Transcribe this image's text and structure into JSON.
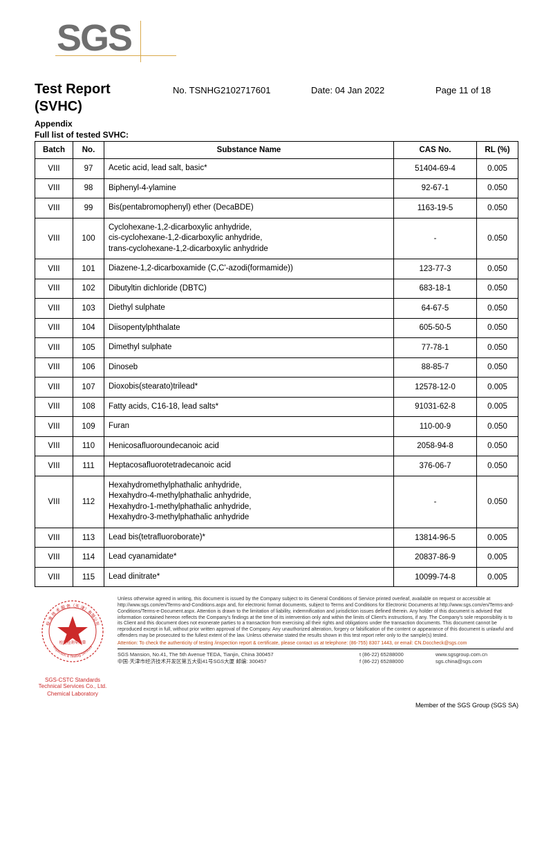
{
  "logo": {
    "text": "SGS"
  },
  "header": {
    "title": "Test Report",
    "subtitle": "(SVHC)",
    "report_no_label": "No.",
    "report_no": "TSNHG2102717601",
    "date_label": "Date:",
    "date": "04 Jan 2022",
    "page_label": "Page",
    "page": "11 of 18",
    "appendix": "Appendix",
    "list_header": "Full list of tested SVHC:"
  },
  "table": {
    "columns": [
      "Batch",
      "No.",
      "Substance Name",
      "CAS No.",
      "RL (%)"
    ],
    "col_align": [
      "center",
      "center",
      "left",
      "center",
      "center"
    ],
    "rows": [
      [
        "VIII",
        "97",
        "Acetic acid, lead salt, basic*",
        "51404-69-4",
        "0.005"
      ],
      [
        "VIII",
        "98",
        "Biphenyl-4-ylamine",
        "92-67-1",
        "0.050"
      ],
      [
        "VIII",
        "99",
        "Bis(pentabromophenyl) ether (DecaBDE)",
        "1163-19-5",
        "0.050"
      ],
      [
        "VIII",
        "100",
        "Cyclohexane-1,2-dicarboxylic anhydride,\ncis-cyclohexane-1,2-dicarboxylic anhydride,\ntrans-cyclohexane-1,2-dicarboxylic anhydride",
        "-",
        "0.050"
      ],
      [
        "VIII",
        "101",
        "Diazene-1,2-dicarboxamide (C,C'-azodi(formamide))",
        "123-77-3",
        "0.050"
      ],
      [
        "VIII",
        "102",
        "Dibutyltin dichloride (DBTC)",
        "683-18-1",
        "0.050"
      ],
      [
        "VIII",
        "103",
        "Diethyl sulphate",
        "64-67-5",
        "0.050"
      ],
      [
        "VIII",
        "104",
        "Diisopentylphthalate",
        "605-50-5",
        "0.050"
      ],
      [
        "VIII",
        "105",
        "Dimethyl sulphate",
        "77-78-1",
        "0.050"
      ],
      [
        "VIII",
        "106",
        "Dinoseb",
        "88-85-7",
        "0.050"
      ],
      [
        "VIII",
        "107",
        "Dioxobis(stearato)trilead*",
        "12578-12-0",
        "0.005"
      ],
      [
        "VIII",
        "108",
        "Fatty acids, C16-18, lead salts*",
        "91031-62-8",
        "0.005"
      ],
      [
        "VIII",
        "109",
        "Furan",
        "110-00-9",
        "0.050"
      ],
      [
        "VIII",
        "110",
        "Henicosafluoroundecanoic acid",
        "2058-94-8",
        "0.050"
      ],
      [
        "VIII",
        "111",
        "Heptacosafluorotetradecanoic acid",
        "376-06-7",
        "0.050"
      ],
      [
        "VIII",
        "112",
        "Hexahydromethylphathalic anhydride,\nHexahydro-4-methylphathalic anhydride,\nHexahydro-1-methylphathalic anhydride,\nHexahydro-3-methylphathalic anhydride",
        "-",
        "0.050"
      ],
      [
        "VIII",
        "113",
        "Lead bis(tetrafluoroborate)*",
        "13814-96-5",
        "0.005"
      ],
      [
        "VIII",
        "114",
        "Lead cyanamidate*",
        "20837-86-9",
        "0.005"
      ],
      [
        "VIII",
        "115",
        "Lead dinitrate*",
        "10099-74-8",
        "0.005"
      ]
    ]
  },
  "footer": {
    "stamp_top": "检验检测专用章",
    "stamp_ring": "Inspection & Testing Services",
    "stamp_caption1": "SGS-CSTC Standards Technical Services Co., Ltd.",
    "stamp_caption2": "Chemical Laboratory",
    "fineprint": "Unless otherwise agreed in writing, this document is issued by the Company subject to its General Conditions of Service printed overleaf, available on request or accessible at http://www.sgs.com/en/Terms-and-Conditions.aspx and, for electronic format documents, subject to Terms and Conditions for Electronic Documents at http://www.sgs.com/en/Terms-and-Conditions/Terms-e-Document.aspx. Attention is drawn to the limitation of liability, indemnification and jurisdiction issues defined therein. Any holder of this document is advised that information contained hereon reflects the Company's findings at the time of its intervention only and within the limits of Client's instructions, if any. The Company's sole responsibility is to its Client and this document does not exonerate parties to a transaction from exercising all their rights and obligations under the transaction documents. This document cannot be reproduced except in full, without prior written approval of the Company. Any unauthorized alteration, forgery or falsification of the content or appearance of this document is unlawful and offenders may be prosecuted to the fullest extent of the law. Unless otherwise stated the results shown in this test report refer only to the sample(s) tested.",
    "attention": "Attention: To check the authenticity of testing /inspection report & certificate, please contact us at telephone: (86-755) 8307 1443, or email: CN.Doccheck@sgs.com",
    "addr_en": "SGS Mansion, No.41, The 5th Avenue TEDA, Tianjin, China 300457",
    "addr_cn": "中国·天津市经济技术开发区第五大街41号SGS大厦    邮编: 300457",
    "tel1": "t (86-22) 65288000",
    "tel2": "f (86-22) 65288000",
    "web1": "www.sgsgroup.com.cn",
    "web2": "sgs.china@sgs.com",
    "member": "Member of the SGS Group (SGS SA)"
  },
  "colors": {
    "logo_gray": "#6f6f6f",
    "logo_rule": "#d9a94a",
    "stamp_red": "#cc2a2a",
    "attention": "#c04a15"
  }
}
